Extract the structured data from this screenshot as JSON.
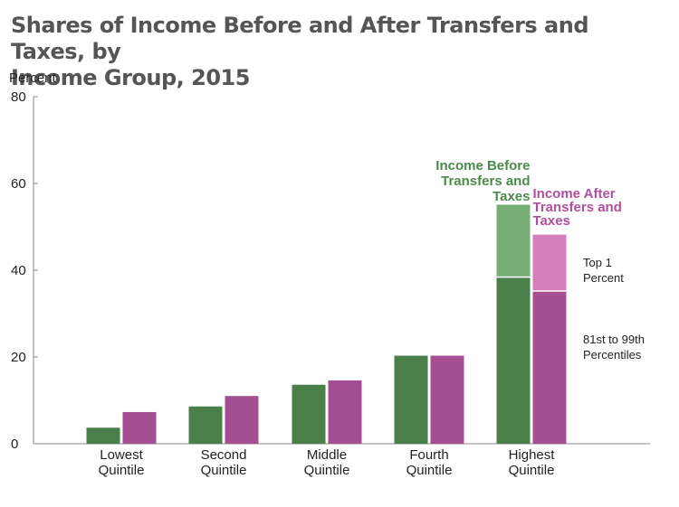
{
  "title_lines": [
    "Shares of Income Before and After Transfers and Taxes, by",
    "Income Group, 2015"
  ],
  "chart_data": {
    "type": "bar",
    "title": "Shares of Income Before and After Transfers and Taxes, by Income Group, 2015",
    "ylabel": "Percent",
    "xlabel": "",
    "ylim": [
      0,
      80
    ],
    "yticks": [
      0,
      20,
      40,
      60,
      80
    ],
    "categories": [
      [
        "Lowest",
        "Quintile"
      ],
      [
        "Second",
        "Quintile"
      ],
      [
        "Middle",
        "Quintile"
      ],
      [
        "Fourth",
        "Quintile"
      ],
      [
        "Highest",
        "Quintile"
      ]
    ],
    "series": [
      {
        "name": "Income Before Transfers and Taxes",
        "label_lines": [
          "Income Before",
          "Transfers and",
          "Taxes"
        ],
        "color": "#4a7f4a",
        "top_color": "#77ad77",
        "label_color": "#4a8a4a",
        "values": [
          3.7,
          8.6,
          13.6,
          20.3,
          55.1
        ],
        "highest_breakdown": {
          "81st to 99th Percentiles": 38.4,
          "Top 1 Percent": 16.7
        }
      },
      {
        "name": "Income After Transfers and Taxes",
        "label_lines": [
          "Income After",
          "Transfers and",
          "Taxes"
        ],
        "color": "#a54f92",
        "top_color": "#d57dbd",
        "label_color": "#b14f9f",
        "values": [
          7.3,
          11.0,
          14.6,
          20.3,
          48.2
        ],
        "highest_breakdown": {
          "81st to 99th Percentiles": 35.2,
          "Top 1 Percent": 13.0
        }
      }
    ],
    "annotations": [
      {
        "id": "top1",
        "lines": [
          "Top 1",
          "Percent"
        ]
      },
      {
        "id": "mid",
        "lines": [
          "81st to 99th",
          "Percentiles"
        ]
      }
    ]
  }
}
